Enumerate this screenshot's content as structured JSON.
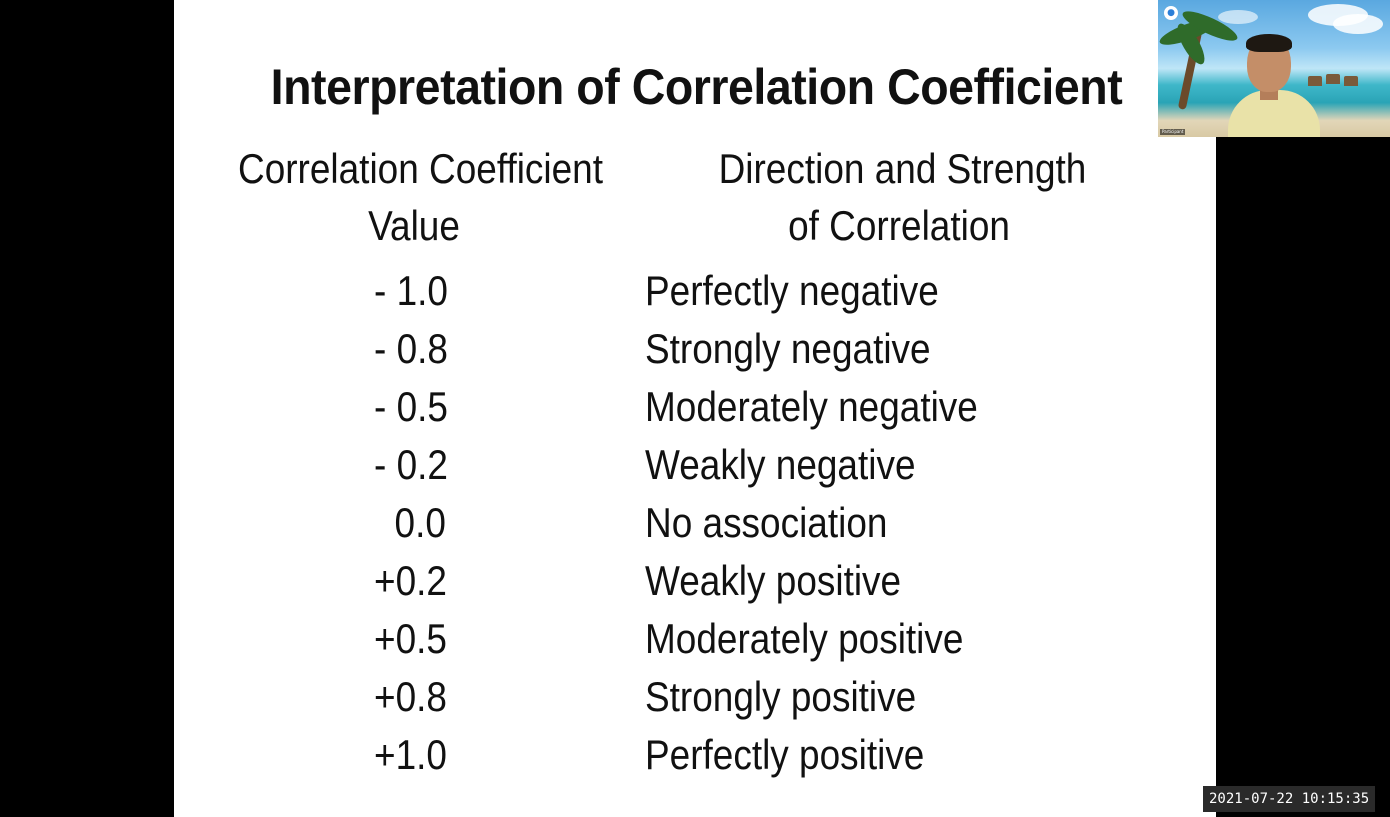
{
  "slide": {
    "title": "Interpretation of Correlation Coefficient",
    "columns": {
      "value_header_line1": "Correlation Coefficient",
      "value_header_line2": "Value",
      "desc_header_line1": "Direction and Strength",
      "desc_header_line2": "of Correlation"
    },
    "rows": [
      {
        "value": "- 1.0",
        "desc": "Perfectly negative"
      },
      {
        "value": "- 0.8",
        "desc": "Strongly negative"
      },
      {
        "value": "- 0.5",
        "desc": "Moderately negative"
      },
      {
        "value": "- 0.2",
        "desc": "Weakly negative"
      },
      {
        "value": "  0.0",
        "desc": "No association"
      },
      {
        "value": "+0.2",
        "desc": "Weakly positive"
      },
      {
        "value": "+0.5",
        "desc": "Moderately positive"
      },
      {
        "value": "+0.8",
        "desc": "Strongly positive"
      },
      {
        "value": "+1.0",
        "desc": "Perfectly positive"
      }
    ]
  },
  "video_tile": {
    "name": "Participant",
    "icons": [
      "mic-status-icon"
    ]
  },
  "timestamp": "2021-07-22 10:15:35",
  "colors": {
    "slide_bg": "#ffffff",
    "screen_bg": "#000000",
    "text": "#111111"
  }
}
